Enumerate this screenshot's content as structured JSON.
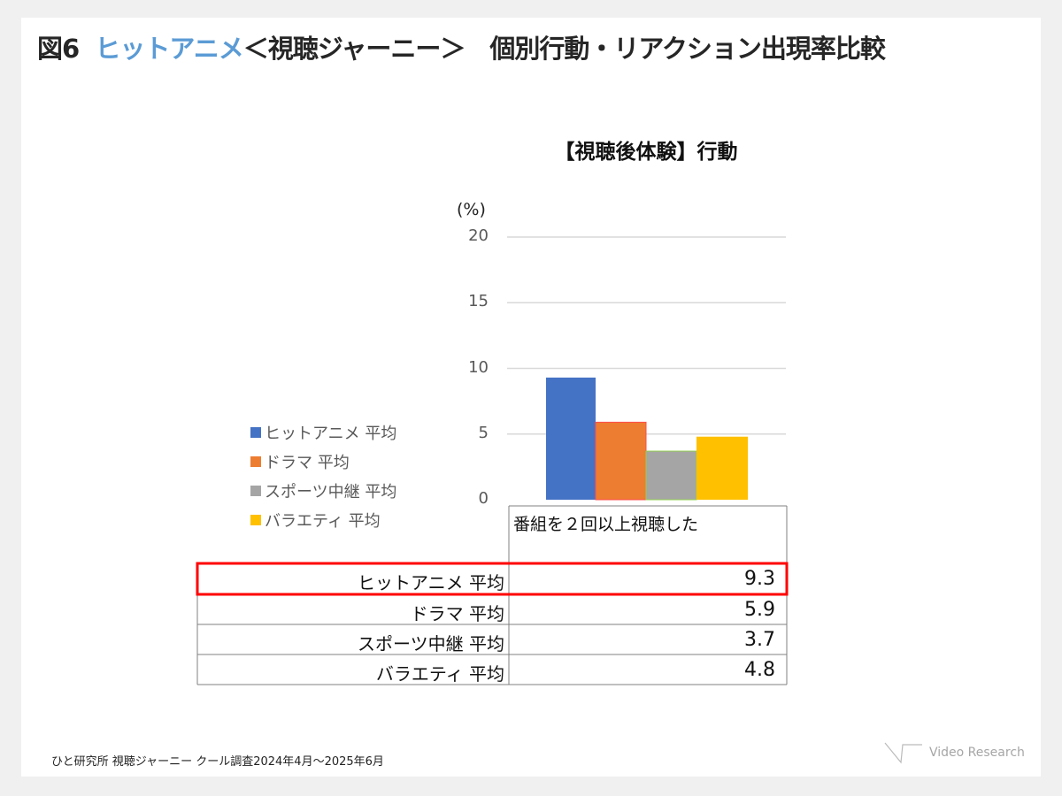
{
  "title": {
    "prefix": "図6",
    "highlight": "ヒットアニメ",
    "rest": "＜視聴ジャーニー＞　個別行動・リアクション出現率比較"
  },
  "chart_data": {
    "type": "bar",
    "title": "【視聴後体験】行動",
    "ylabel": "(%)",
    "ylim": [
      0,
      20
    ],
    "yticks": [
      "0",
      "5",
      "10",
      "15",
      "20"
    ],
    "grid": true,
    "legend_position": "left",
    "category": "番組を２回以上視聴した",
    "series": [
      {
        "name": "ヒットアニメ  平均",
        "value": 9.3,
        "value_label": "9.3",
        "color": "#4472c4"
      },
      {
        "name": "ドラマ  平均",
        "value": 5.9,
        "value_label": "5.9",
        "color": "#ed7d31"
      },
      {
        "name": "スポーツ中継  平均",
        "value": 3.7,
        "value_label": "3.7",
        "color": "#a5a5a5"
      },
      {
        "name": "バラエティ  平均",
        "value": 4.8,
        "value_label": "4.8",
        "color": "#ffc000"
      }
    ]
  },
  "highlight_color": "#ff0000",
  "footer": "ひと研究所  視聴ジャーニー  クール調査2024年4月～2025年6月",
  "logo": "Video Research"
}
